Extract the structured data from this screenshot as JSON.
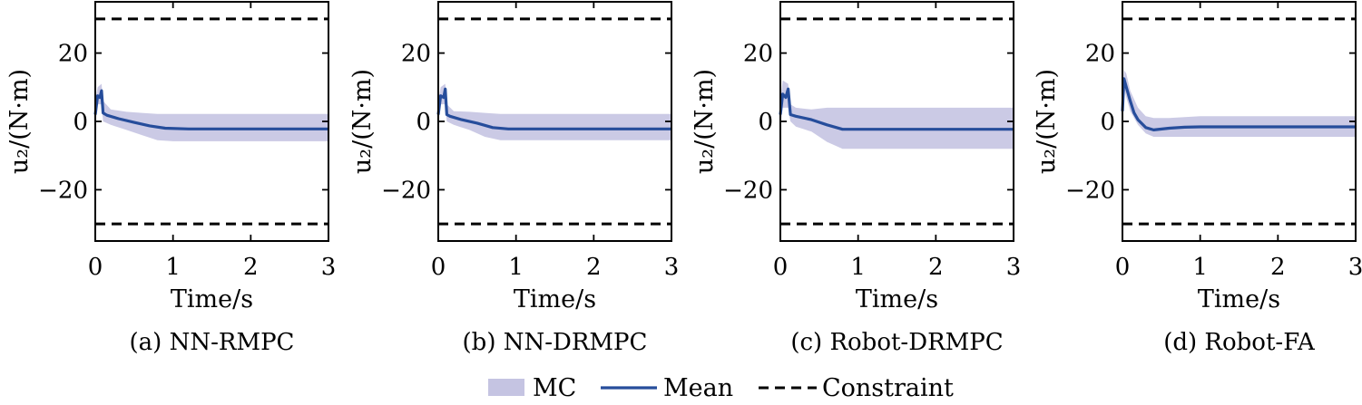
{
  "chart_data": [
    {
      "type": "line",
      "caption": "(a) NN-RMPC",
      "xlabel": "Time/s",
      "ylabel": "u₂/(N·m)",
      "xlim": [
        0,
        3
      ],
      "ylim": [
        -35,
        35
      ],
      "xticks": [
        0,
        1,
        2,
        3
      ],
      "yticks": [
        -20,
        0,
        20
      ],
      "constraint": [
        -30,
        30
      ],
      "series": [
        {
          "name": "Mean",
          "x": [
            0,
            0.03,
            0.06,
            0.08,
            0.1,
            0.15,
            0.3,
            0.5,
            0.7,
            0.9,
            1.2,
            2.0,
            3.0
          ],
          "y": [
            2,
            7.5,
            7.0,
            9.0,
            2.5,
            1.8,
            0.8,
            -0.3,
            -1.3,
            -2.0,
            -2.2,
            -2.2,
            -2.2
          ]
        },
        {
          "name": "MC",
          "x": [
            0,
            0.03,
            0.08,
            0.1,
            0.2,
            0.4,
            0.6,
            0.8,
            1.0,
            1.5,
            2.0,
            3.0
          ],
          "upper": [
            6,
            10,
            11,
            6,
            3.5,
            2.8,
            2.5,
            2.2,
            2.2,
            2.2,
            2.2,
            2.2
          ],
          "lower": [
            -1,
            5,
            5,
            0,
            -1,
            -2.5,
            -4,
            -5.5,
            -5.8,
            -5.8,
            -5.8,
            -5.8
          ]
        }
      ]
    },
    {
      "type": "line",
      "caption": "(b) NN-DRMPC",
      "xlabel": "Time/s",
      "ylabel": "u₂/(N·m)",
      "xlim": [
        0,
        3
      ],
      "ylim": [
        -35,
        35
      ],
      "xticks": [
        0,
        1,
        2,
        3
      ],
      "yticks": [
        -20,
        0,
        20
      ],
      "constraint": [
        -30,
        30
      ],
      "series": [
        {
          "name": "Mean",
          "x": [
            0,
            0.03,
            0.07,
            0.09,
            0.11,
            0.15,
            0.3,
            0.5,
            0.7,
            0.9,
            1.2,
            2.0,
            3.0
          ],
          "y": [
            2,
            7.5,
            7.0,
            9.5,
            2.0,
            1.5,
            0.5,
            -0.5,
            -1.8,
            -2.2,
            -2.2,
            -2.2,
            -2.2
          ]
        },
        {
          "name": "MC",
          "x": [
            0,
            0.03,
            0.09,
            0.11,
            0.2,
            0.4,
            0.6,
            0.8,
            1.0,
            1.5,
            2.0,
            3.0
          ],
          "upper": [
            6,
            10,
            11,
            5,
            3.0,
            2.8,
            2.5,
            2.2,
            2.2,
            2.2,
            2.2,
            2.2
          ],
          "lower": [
            -1,
            5,
            5,
            0,
            -1,
            -2.5,
            -4.5,
            -5.5,
            -5.5,
            -5.5,
            -5.5,
            -5.5
          ]
        }
      ]
    },
    {
      "type": "line",
      "caption": "(c) Robot-DRMPC",
      "xlabel": "Time/s",
      "ylabel": "u₂/(N·m)",
      "xlim": [
        0,
        3
      ],
      "ylim": [
        -35,
        35
      ],
      "xticks": [
        0,
        1,
        2,
        3
      ],
      "yticks": [
        -20,
        0,
        20
      ],
      "constraint": [
        -30,
        30
      ],
      "series": [
        {
          "name": "Mean",
          "x": [
            0,
            0.03,
            0.07,
            0.1,
            0.13,
            0.2,
            0.4,
            0.6,
            0.8,
            1.0,
            1.5,
            2.0,
            3.0
          ],
          "y": [
            2,
            8,
            7.0,
            9.5,
            2.0,
            1.5,
            0.5,
            -1.0,
            -2.3,
            -2.3,
            -2.3,
            -2.3,
            -2.3
          ]
        },
        {
          "name": "MC",
          "x": [
            0,
            0.03,
            0.1,
            0.13,
            0.2,
            0.4,
            0.6,
            0.8,
            1.0,
            1.5,
            2.0,
            3.0
          ],
          "upper": [
            6,
            12,
            11,
            5,
            4.0,
            3.5,
            4.0,
            4.0,
            4.0,
            4.0,
            4.0,
            4.0
          ],
          "lower": [
            -1,
            4,
            4,
            0,
            -1.5,
            -3,
            -6,
            -8,
            -8,
            -8,
            -8,
            -8
          ]
        }
      ]
    },
    {
      "type": "line",
      "caption": "(d) Robot-FA",
      "xlabel": "Time/s",
      "ylabel": "u₂/(N·m)",
      "xlim": [
        0,
        3
      ],
      "ylim": [
        -35,
        35
      ],
      "xticks": [
        0,
        1,
        2,
        3
      ],
      "yticks": [
        -20,
        0,
        20
      ],
      "constraint": [
        -30,
        30
      ],
      "series": [
        {
          "name": "Mean",
          "x": [
            0,
            0.02,
            0.05,
            0.1,
            0.15,
            0.2,
            0.3,
            0.4,
            0.6,
            0.8,
            1.0,
            2.0,
            3.0
          ],
          "y": [
            3,
            12.5,
            10,
            6,
            2.5,
            0.5,
            -1.8,
            -2.5,
            -2.0,
            -1.7,
            -1.6,
            -1.6,
            -1.6
          ]
        },
        {
          "name": "MC",
          "x": [
            0,
            0.02,
            0.05,
            0.1,
            0.2,
            0.3,
            0.4,
            0.6,
            1.0,
            2.0,
            3.0
          ],
          "upper": [
            5,
            15,
            14,
            9,
            4,
            1.5,
            1.0,
            1.0,
            1.5,
            1.5,
            1.5
          ],
          "lower": [
            1,
            10,
            7,
            3,
            -1,
            -3.5,
            -4.5,
            -4.5,
            -4.5,
            -4.5,
            -4.5
          ]
        }
      ]
    }
  ],
  "legend": {
    "items": [
      {
        "label": "MC",
        "kind": "band",
        "color": "#c5c4e2"
      },
      {
        "label": "Mean",
        "kind": "line",
        "color": "#264d9b"
      },
      {
        "label": "Constraint",
        "kind": "dashed",
        "color": "#000000"
      }
    ]
  },
  "colors": {
    "band": "#c5c4e2",
    "mean": "#264d9b",
    "constraint": "#000000",
    "axis": "#000000"
  }
}
